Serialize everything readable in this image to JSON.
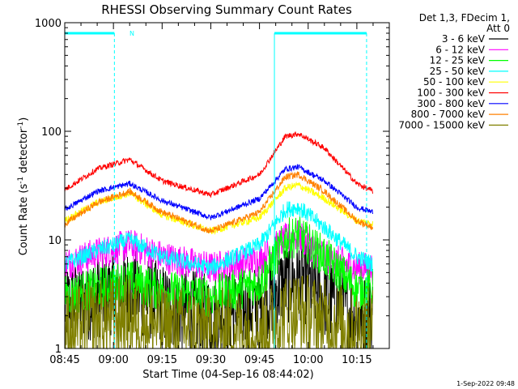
{
  "chart_data": {
    "type": "line",
    "title": "RHESSI Observing Summary Count Rates",
    "xlabel": "Start Time (04-Sep-16 08:44:02)",
    "ylabel_main": "Count Rate (s",
    "ylabel_sup1": "-1",
    "ylabel_mid": " detector",
    "ylabel_sup2": "-1",
    "ylabel_end": ")",
    "yscale": "log",
    "ylim": [
      1,
      1000
    ],
    "xlim_minutes": [
      0,
      100
    ],
    "y_ticks": [
      {
        "value": 1,
        "label": "1"
      },
      {
        "value": 10,
        "label": "10"
      },
      {
        "value": 100,
        "label": "100"
      },
      {
        "value": 1000,
        "label": "1000"
      }
    ],
    "x_ticks": [
      {
        "minute": 0,
        "label": "08:45"
      },
      {
        "minute": 15,
        "label": "09:00"
      },
      {
        "minute": 30,
        "label": "09:15"
      },
      {
        "minute": 45,
        "label": "09:30"
      },
      {
        "minute": 60,
        "label": "09:45"
      },
      {
        "minute": 75,
        "label": "10:00"
      },
      {
        "minute": 90,
        "label": "10:15"
      }
    ],
    "legend": {
      "header": [
        "Det 1,3, FDecim 1,",
        "Att 0"
      ],
      "placement": "right"
    },
    "series": [
      {
        "name": "3 - 6 keV",
        "color": "#000000",
        "minute": [
          0,
          10,
          20,
          30,
          45,
          60,
          68,
          72,
          80,
          90,
          95
        ],
        "values": [
          2.5,
          3,
          3.5,
          2.5,
          2,
          2.5,
          4,
          4.5,
          3,
          2,
          2
        ]
      },
      {
        "name": "6 - 12 keV",
        "color": "#ff00ff",
        "minute": [
          0,
          10,
          20,
          30,
          45,
          60,
          68,
          72,
          80,
          90,
          95
        ],
        "values": [
          6,
          7.5,
          9,
          7,
          5.5,
          6.5,
          10,
          11,
          7,
          5.5,
          5.5
        ]
      },
      {
        "name": "12 - 25 keV",
        "color": "#00ff00",
        "minute": [
          0,
          10,
          20,
          30,
          45,
          60,
          68,
          72,
          80,
          90,
          95
        ],
        "values": [
          3,
          3.6,
          4.2,
          3.4,
          3,
          4,
          10,
          11,
          7,
          3.5,
          3.5
        ]
      },
      {
        "name": "25 - 50 keV",
        "color": "#00ffff",
        "minute": [
          0,
          10,
          20,
          30,
          45,
          60,
          68,
          72,
          80,
          90,
          95
        ],
        "values": [
          6,
          8,
          10,
          7,
          5.5,
          9,
          19,
          20,
          13,
          7,
          6
        ]
      },
      {
        "name": "50 - 100 keV",
        "color": "#ffff00",
        "minute": [
          0,
          10,
          20,
          30,
          45,
          60,
          68,
          72,
          80,
          90,
          95
        ],
        "values": [
          15,
          22,
          27,
          17,
          12,
          16,
          30,
          32,
          24,
          15,
          14
        ]
      },
      {
        "name": "100 - 300 keV",
        "color": "#ff0000",
        "minute": [
          0,
          10,
          20,
          30,
          45,
          60,
          68,
          72,
          80,
          90,
          95
        ],
        "values": [
          29,
          45,
          55,
          35,
          26,
          40,
          90,
          95,
          70,
          33,
          28
        ]
      },
      {
        "name": "300 - 800 keV",
        "color": "#0000ff",
        "minute": [
          0,
          10,
          20,
          30,
          45,
          60,
          68,
          72,
          80,
          90,
          95
        ],
        "values": [
          19,
          28,
          33,
          23,
          16,
          24,
          45,
          47,
          35,
          20,
          18
        ]
      },
      {
        "name": "800 - 7000 keV",
        "color": "#ff8000",
        "minute": [
          0,
          10,
          20,
          30,
          45,
          60,
          68,
          72,
          80,
          90,
          95
        ],
        "values": [
          14,
          22,
          28,
          18,
          12,
          18,
          38,
          40,
          28,
          15,
          13
        ]
      },
      {
        "name": "7000 - 15000 keV",
        "color": "#808000",
        "minute": [
          0,
          10,
          20,
          30,
          45,
          60,
          68,
          72,
          80,
          90,
          95
        ],
        "values": [
          1.5,
          1.8,
          2,
          1.6,
          1.5,
          1.5,
          2,
          2.2,
          1.8,
          1.5,
          1.5
        ]
      }
    ],
    "annotations": {
      "n_label": "N",
      "night_bars_minutes": [
        [
          0,
          15.3
        ],
        [
          64.6,
          93
        ]
      ],
      "vertical_markers_minutes": [
        15.3,
        64.6,
        93
      ],
      "marker_styles": [
        "dashed",
        "solid",
        "dashed"
      ],
      "night_level": 800,
      "marker_color": "#00ffff"
    }
  },
  "footer_timestamp": "1-Sep-2022 09:48"
}
